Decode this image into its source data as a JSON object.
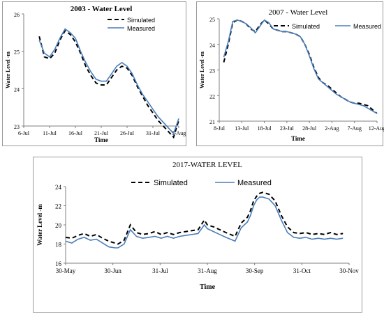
{
  "colors": {
    "simulated": "#000000",
    "measured": "#4a7ebb",
    "axis": "#808080",
    "border": "#9a9a9a"
  },
  "chart_data": [
    {
      "type": "line",
      "title": "2003 - Water Level",
      "xlabel": "Time",
      "ylabel": "Water Level -m",
      "x_ticks": [
        "6-Jul",
        "11-Jul",
        "16-Jul",
        "21-Jul",
        "26-Jul",
        "31-Jul",
        "5-Aug"
      ],
      "xlim": [
        0,
        30
      ],
      "ylim": [
        23,
        26
      ],
      "y_ticks": [
        23,
        24,
        25,
        26
      ],
      "legend": "top-right",
      "series": [
        {
          "name": "Simulated",
          "style": "dashed",
          "x": [
            3,
            4,
            5,
            6,
            7,
            8,
            9,
            10,
            11,
            12,
            13,
            14,
            15,
            16,
            17,
            18,
            19,
            20,
            21,
            22,
            23,
            24,
            25,
            26,
            27,
            28,
            29,
            30
          ],
          "y": [
            25.4,
            24.85,
            24.8,
            24.95,
            25.3,
            25.55,
            25.45,
            25.25,
            24.95,
            24.6,
            24.35,
            24.15,
            24.1,
            24.1,
            24.3,
            24.5,
            24.6,
            24.55,
            24.35,
            24.05,
            23.8,
            23.55,
            23.35,
            23.15,
            23.0,
            22.85,
            22.7,
            23.15
          ]
        },
        {
          "name": "Measured",
          "style": "solid",
          "x": [
            3,
            4,
            5,
            6,
            7,
            8,
            9,
            10,
            11,
            12,
            13,
            14,
            15,
            16,
            17,
            18,
            19,
            20,
            21,
            22,
            23,
            24,
            25,
            26,
            27,
            28,
            29,
            30
          ],
          "y": [
            25.3,
            24.95,
            24.85,
            25.05,
            25.35,
            25.6,
            25.5,
            25.35,
            25.0,
            24.7,
            24.45,
            24.25,
            24.2,
            24.2,
            24.4,
            24.6,
            24.7,
            24.6,
            24.4,
            24.1,
            23.85,
            23.65,
            23.45,
            23.25,
            23.1,
            22.95,
            22.8,
            23.2
          ]
        }
      ]
    },
    {
      "type": "line",
      "title": "2007 - Water Level",
      "xlabel": "Time",
      "ylabel": "Water Level -m",
      "x_ticks": [
        "8-Jul",
        "13-Jul",
        "18-Jul",
        "23-Jul",
        "28-Jul",
        "2-Aug",
        "7-Aug",
        "12-Aug"
      ],
      "xlim": [
        0,
        35
      ],
      "ylim": [
        21,
        25
      ],
      "y_ticks": [
        21,
        22,
        23,
        24,
        25
      ],
      "legend": "top-right",
      "series": [
        {
          "name": "Simulated",
          "style": "dashed",
          "x": [
            1,
            2,
            3,
            4,
            5,
            6,
            7,
            8,
            9,
            10,
            11,
            12,
            13,
            14,
            15,
            16,
            17,
            18,
            19,
            20,
            21,
            22,
            23,
            24,
            25,
            26,
            27,
            28,
            29,
            30,
            31,
            32,
            33,
            34,
            35
          ],
          "y": [
            23.3,
            24.0,
            24.85,
            24.95,
            24.9,
            24.8,
            24.6,
            24.5,
            24.75,
            24.95,
            24.8,
            24.6,
            24.55,
            24.5,
            24.5,
            24.45,
            24.4,
            24.3,
            24.0,
            23.6,
            23.1,
            22.7,
            22.5,
            22.4,
            22.25,
            22.1,
            21.95,
            21.85,
            21.75,
            21.7,
            21.7,
            21.65,
            21.6,
            21.45,
            21.3
          ]
        },
        {
          "name": "Measured",
          "style": "solid",
          "x": [
            1,
            2,
            3,
            4,
            5,
            6,
            7,
            8,
            9,
            10,
            11,
            12,
            13,
            14,
            15,
            16,
            17,
            18,
            19,
            20,
            21,
            22,
            23,
            24,
            25,
            26,
            27,
            28,
            29,
            30,
            31,
            32,
            33,
            34,
            35
          ],
          "y": [
            23.5,
            24.1,
            24.9,
            24.95,
            24.9,
            24.8,
            24.65,
            24.45,
            24.7,
            24.95,
            24.85,
            24.6,
            24.55,
            24.5,
            24.5,
            24.45,
            24.4,
            24.3,
            24.0,
            23.55,
            23.05,
            22.65,
            22.5,
            22.35,
            22.2,
            22.05,
            21.95,
            21.85,
            21.75,
            21.7,
            21.65,
            21.6,
            21.5,
            21.4,
            21.3
          ]
        }
      ]
    },
    {
      "type": "line",
      "title": "2017-WATER LEVEL",
      "xlabel": "Time",
      "ylabel": "Water Level -m",
      "x_ticks": [
        "30-May",
        "30-Jun",
        "31-Jul",
        "31-Aug",
        "30-Sep",
        "31-Oct",
        "30-Nov"
      ],
      "xlim": [
        0,
        184
      ],
      "ylim": [
        16,
        24
      ],
      "y_ticks": [
        16,
        18,
        20,
        22,
        24
      ],
      "legend": "top",
      "series": [
        {
          "name": "Simulated",
          "style": "dashed",
          "x": [
            0,
            4,
            8,
            12,
            16,
            20,
            24,
            28,
            32,
            34,
            36,
            38,
            42,
            46,
            50,
            54,
            58,
            62,
            66,
            70,
            74,
            78,
            82,
            86,
            90,
            92,
            96,
            100,
            104,
            110,
            114,
            118,
            120,
            122,
            124,
            126,
            128,
            132,
            136,
            140,
            144,
            148,
            152,
            156,
            160,
            164,
            168,
            172,
            176,
            180
          ],
          "y": [
            18.7,
            18.6,
            18.9,
            19.1,
            18.8,
            19.0,
            18.6,
            18.3,
            18.1,
            18.0,
            18.2,
            18.4,
            20.0,
            19.2,
            19.0,
            19.1,
            19.3,
            19.0,
            19.2,
            19.0,
            19.2,
            19.3,
            19.4,
            19.5,
            20.5,
            20.0,
            19.8,
            19.5,
            19.2,
            18.8,
            20.2,
            20.8,
            21.5,
            22.5,
            23.0,
            23.3,
            23.4,
            23.2,
            22.5,
            21.0,
            19.8,
            19.2,
            19.1,
            19.2,
            19.0,
            19.1,
            19.0,
            19.2,
            19.0,
            19.1
          ]
        },
        {
          "name": "Measured",
          "style": "solid",
          "x": [
            0,
            4,
            8,
            12,
            16,
            20,
            24,
            28,
            32,
            34,
            36,
            38,
            42,
            46,
            50,
            54,
            58,
            62,
            66,
            70,
            74,
            78,
            82,
            86,
            90,
            92,
            96,
            100,
            104,
            110,
            114,
            118,
            120,
            122,
            124,
            126,
            128,
            132,
            136,
            140,
            144,
            148,
            152,
            156,
            160,
            164,
            168,
            172,
            176,
            180
          ],
          "y": [
            18.3,
            18.1,
            18.5,
            18.7,
            18.4,
            18.5,
            18.1,
            17.7,
            17.6,
            17.6,
            17.8,
            18.0,
            19.5,
            18.8,
            18.6,
            18.7,
            18.8,
            18.6,
            18.8,
            18.6,
            18.8,
            18.9,
            19.0,
            19.1,
            20.0,
            19.6,
            19.3,
            19.0,
            18.7,
            18.3,
            19.7,
            20.3,
            21.0,
            22.0,
            22.6,
            22.9,
            22.9,
            22.7,
            22.0,
            20.5,
            19.2,
            18.7,
            18.6,
            18.7,
            18.5,
            18.6,
            18.5,
            18.6,
            18.5,
            18.6
          ]
        }
      ]
    }
  ]
}
